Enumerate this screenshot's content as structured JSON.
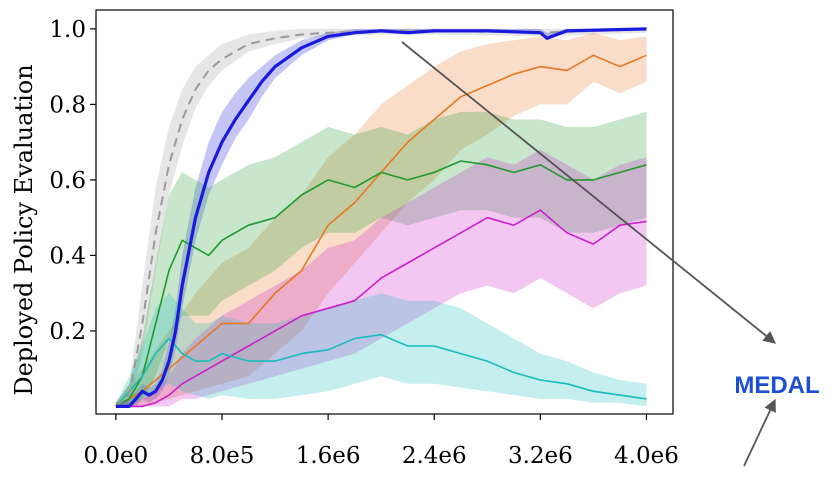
{
  "chart_data": {
    "type": "line",
    "title": "",
    "xlabel": "",
    "ylabel": "Deployed Policy Evaluation",
    "xlim": [
      -150000,
      4200000
    ],
    "ylim": [
      -0.02,
      1.05
    ],
    "x_ticks": [
      0,
      800000,
      1600000,
      2400000,
      3200000,
      4000000
    ],
    "x_tick_labels": [
      "0.0e0",
      "8.0e5",
      "1.6e6",
      "2.4e6",
      "3.2e6",
      "4.0e6"
    ],
    "y_ticks": [
      0.2,
      0.4,
      0.6,
      0.8,
      1.0
    ],
    "y_tick_labels": [
      "0.2",
      "0.4",
      "0.6",
      "0.8",
      "1.0"
    ],
    "grid": false,
    "legend": "none",
    "annotation": {
      "label": "MEDAL",
      "color": "#1f4fd1",
      "arrow_color": "#555555",
      "points_to_series": "blue"
    },
    "series": [
      {
        "color": "#9a9a9a",
        "style": "dashed",
        "x": [
          0,
          100000,
          200000,
          300000,
          400000,
          500000,
          600000,
          700000,
          800000,
          1000000,
          1200000,
          1400000,
          1600000,
          2000000,
          2400000,
          3200000,
          4000000
        ],
        "y": [
          0.0,
          0.03,
          0.22,
          0.46,
          0.64,
          0.76,
          0.84,
          0.89,
          0.92,
          0.96,
          0.975,
          0.985,
          0.99,
          0.995,
          0.995,
          0.99,
          1.0
        ],
        "lower": [
          0.0,
          0.0,
          0.14,
          0.36,
          0.56,
          0.69,
          0.79,
          0.85,
          0.89,
          0.94,
          0.96,
          0.975,
          0.98,
          0.985,
          0.985,
          0.98,
          0.99
        ],
        "upper": [
          0.01,
          0.06,
          0.32,
          0.58,
          0.74,
          0.84,
          0.9,
          0.93,
          0.96,
          0.985,
          0.995,
          1.0,
          1.0,
          1.0,
          1.0,
          1.0,
          1.0
        ]
      },
      {
        "color": "#1a1adc",
        "style": "solid-bold",
        "x": [
          0,
          100000,
          150000,
          200000,
          250000,
          300000,
          350000,
          400000,
          450000,
          500000,
          600000,
          700000,
          800000,
          900000,
          1000000,
          1100000,
          1200000,
          1400000,
          1600000,
          1800000,
          2000000,
          2200000,
          2400000,
          2800000,
          3200000,
          3250000,
          3400000,
          4000000
        ],
        "y": [
          0.0,
          0.0,
          0.02,
          0.04,
          0.03,
          0.04,
          0.07,
          0.12,
          0.2,
          0.32,
          0.5,
          0.62,
          0.7,
          0.76,
          0.81,
          0.86,
          0.9,
          0.95,
          0.98,
          0.99,
          0.995,
          0.99,
          0.995,
          0.995,
          0.99,
          0.975,
          0.995,
          1.0
        ],
        "lower": [
          0.0,
          0.0,
          0.0,
          0.02,
          0.01,
          0.02,
          0.04,
          0.08,
          0.15,
          0.26,
          0.44,
          0.56,
          0.64,
          0.71,
          0.76,
          0.82,
          0.87,
          0.93,
          0.97,
          0.985,
          0.99,
          0.985,
          0.99,
          0.99,
          0.985,
          0.97,
          0.99,
          0.995
        ],
        "upper": [
          0.01,
          0.02,
          0.04,
          0.06,
          0.05,
          0.06,
          0.1,
          0.17,
          0.26,
          0.4,
          0.58,
          0.7,
          0.78,
          0.83,
          0.87,
          0.9,
          0.93,
          0.97,
          0.99,
          1.0,
          1.0,
          1.0,
          1.0,
          1.0,
          1.0,
          0.99,
          1.0,
          1.0
        ]
      },
      {
        "color": "#e87722",
        "style": "solid",
        "x": [
          0,
          200000,
          400000,
          600000,
          800000,
          1000000,
          1200000,
          1400000,
          1600000,
          1800000,
          2000000,
          2200000,
          2400000,
          2600000,
          2800000,
          3000000,
          3200000,
          3400000,
          3600000,
          3800000,
          4000000
        ],
        "y": [
          0.0,
          0.04,
          0.1,
          0.16,
          0.22,
          0.22,
          0.3,
          0.36,
          0.48,
          0.54,
          0.62,
          0.7,
          0.76,
          0.82,
          0.85,
          0.88,
          0.9,
          0.89,
          0.93,
          0.9,
          0.93
        ],
        "lower": [
          0.0,
          0.0,
          0.02,
          0.04,
          0.06,
          0.08,
          0.14,
          0.2,
          0.3,
          0.38,
          0.46,
          0.54,
          0.6,
          0.68,
          0.72,
          0.77,
          0.8,
          0.8,
          0.86,
          0.83,
          0.86
        ],
        "upper": [
          0.01,
          0.1,
          0.2,
          0.3,
          0.38,
          0.42,
          0.5,
          0.56,
          0.66,
          0.72,
          0.8,
          0.85,
          0.9,
          0.94,
          0.96,
          0.97,
          0.98,
          0.97,
          0.99,
          0.97,
          0.98
        ]
      },
      {
        "color": "#1f9a2e",
        "style": "solid",
        "x": [
          0,
          100000,
          200000,
          300000,
          400000,
          500000,
          600000,
          700000,
          800000,
          1000000,
          1200000,
          1400000,
          1600000,
          1800000,
          2000000,
          2200000,
          2400000,
          2600000,
          2800000,
          3000000,
          3200000,
          3400000,
          3600000,
          3800000,
          4000000
        ],
        "y": [
          0.0,
          0.02,
          0.08,
          0.22,
          0.36,
          0.44,
          0.42,
          0.4,
          0.44,
          0.48,
          0.5,
          0.56,
          0.6,
          0.58,
          0.62,
          0.6,
          0.62,
          0.65,
          0.64,
          0.62,
          0.64,
          0.6,
          0.6,
          0.62,
          0.64
        ],
        "lower": [
          0.0,
          0.0,
          0.02,
          0.08,
          0.18,
          0.24,
          0.24,
          0.24,
          0.28,
          0.32,
          0.36,
          0.42,
          0.46,
          0.46,
          0.5,
          0.48,
          0.5,
          0.52,
          0.52,
          0.5,
          0.5,
          0.46,
          0.46,
          0.48,
          0.5
        ],
        "upper": [
          0.01,
          0.06,
          0.18,
          0.38,
          0.56,
          0.62,
          0.6,
          0.58,
          0.6,
          0.64,
          0.66,
          0.7,
          0.74,
          0.72,
          0.74,
          0.72,
          0.76,
          0.78,
          0.78,
          0.76,
          0.76,
          0.74,
          0.74,
          0.76,
          0.78
        ]
      },
      {
        "color": "#cc1fcc",
        "style": "solid",
        "x": [
          0,
          200000,
          300000,
          400000,
          500000,
          600000,
          800000,
          1000000,
          1200000,
          1400000,
          1600000,
          1800000,
          2000000,
          2200000,
          2400000,
          2600000,
          2800000,
          3000000,
          3200000,
          3400000,
          3600000,
          3800000,
          4000000
        ],
        "y": [
          0.0,
          0.0,
          0.01,
          0.03,
          0.06,
          0.08,
          0.12,
          0.16,
          0.2,
          0.24,
          0.26,
          0.28,
          0.34,
          0.38,
          0.42,
          0.46,
          0.5,
          0.48,
          0.52,
          0.46,
          0.43,
          0.48,
          0.49
        ],
        "lower": [
          0.0,
          0.0,
          0.0,
          0.0,
          0.02,
          0.02,
          0.04,
          0.06,
          0.08,
          0.1,
          0.12,
          0.14,
          0.18,
          0.22,
          0.26,
          0.3,
          0.32,
          0.3,
          0.34,
          0.3,
          0.26,
          0.3,
          0.32
        ],
        "upper": [
          0.01,
          0.02,
          0.04,
          0.08,
          0.14,
          0.18,
          0.24,
          0.28,
          0.32,
          0.36,
          0.42,
          0.44,
          0.5,
          0.54,
          0.58,
          0.62,
          0.66,
          0.64,
          0.68,
          0.64,
          0.6,
          0.64,
          0.66
        ]
      },
      {
        "color": "#17bcbc",
        "style": "solid",
        "x": [
          0,
          100000,
          200000,
          300000,
          400000,
          500000,
          600000,
          700000,
          800000,
          1000000,
          1200000,
          1400000,
          1600000,
          1800000,
          2000000,
          2200000,
          2400000,
          2600000,
          2800000,
          3000000,
          3200000,
          3400000,
          3600000,
          3800000,
          4000000
        ],
        "y": [
          0.0,
          0.04,
          0.08,
          0.14,
          0.18,
          0.14,
          0.12,
          0.12,
          0.14,
          0.12,
          0.12,
          0.14,
          0.15,
          0.18,
          0.19,
          0.16,
          0.16,
          0.14,
          0.12,
          0.09,
          0.07,
          0.06,
          0.04,
          0.03,
          0.02
        ],
        "lower": [
          0.0,
          0.0,
          0.02,
          0.04,
          0.06,
          0.04,
          0.03,
          0.02,
          0.03,
          0.02,
          0.02,
          0.03,
          0.04,
          0.06,
          0.08,
          0.06,
          0.06,
          0.05,
          0.04,
          0.03,
          0.02,
          0.02,
          0.01,
          0.01,
          0.0
        ],
        "upper": [
          0.01,
          0.08,
          0.16,
          0.26,
          0.3,
          0.26,
          0.22,
          0.22,
          0.24,
          0.22,
          0.22,
          0.24,
          0.26,
          0.28,
          0.3,
          0.28,
          0.28,
          0.26,
          0.22,
          0.18,
          0.14,
          0.12,
          0.09,
          0.07,
          0.06
        ]
      }
    ]
  }
}
